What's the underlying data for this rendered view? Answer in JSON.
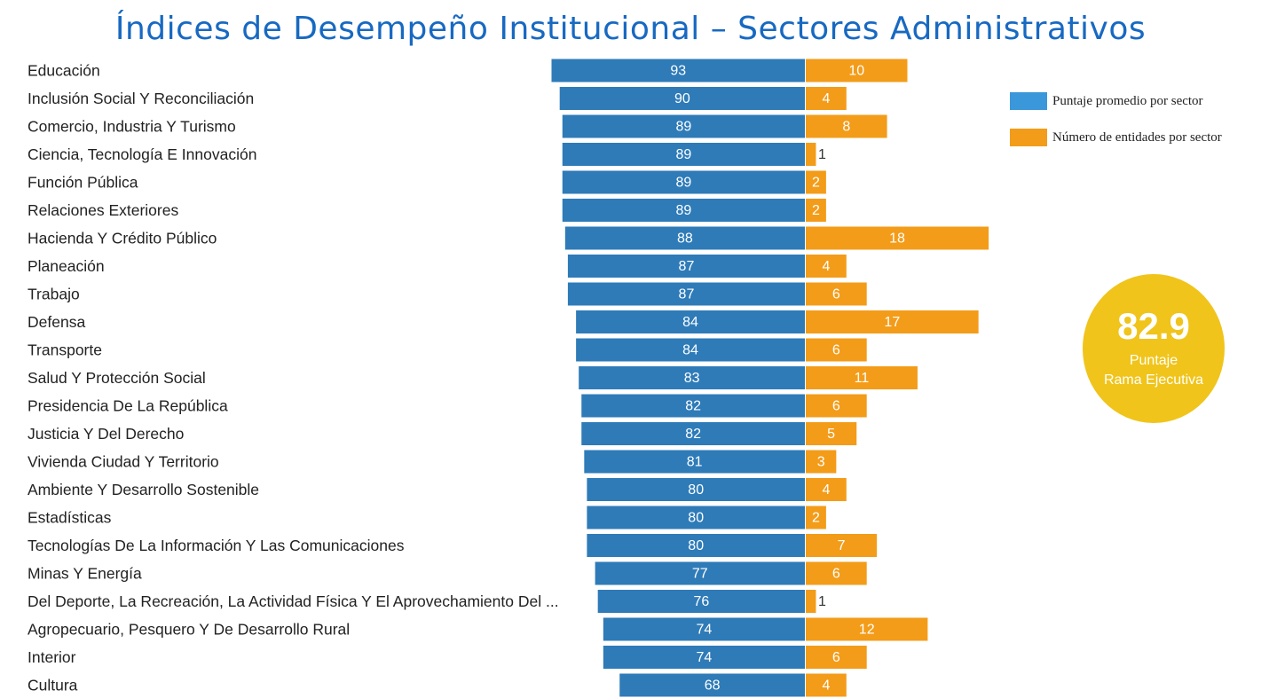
{
  "title": "Índices de Desempeño Institucional – Sectores Administrativos",
  "legend": {
    "items": [
      {
        "label": "Puntaje promedio por sector",
        "color": "#3a97da"
      },
      {
        "label": "Número de entidades por sector",
        "color": "#f39c19"
      }
    ]
  },
  "score": {
    "value": "82.9",
    "label_line1": "Puntaje",
    "label_line2": "Rama Ejecutiva",
    "color": "#f0c41a"
  },
  "colors": {
    "score_bar": "#2e7bb8",
    "count_bar": "#f39c19"
  },
  "chart_data": {
    "type": "bar",
    "orientation": "horizontal",
    "categories": [
      "Educación",
      "Inclusión Social Y Reconciliación",
      "Comercio, Industria Y Turismo",
      "Ciencia, Tecnología E Innovación",
      "Función Pública",
      "Relaciones Exteriores",
      "Hacienda Y Crédito Público",
      "Planeación",
      "Trabajo",
      "Defensa",
      "Transporte",
      "Salud Y Protección Social",
      "Presidencia De La República",
      "Justicia Y Del Derecho",
      "Vivienda Ciudad Y Territorio",
      "Ambiente Y Desarrollo Sostenible",
      "Estadísticas",
      "Tecnologías De La Información Y Las Comunicaciones",
      "Minas Y Energía",
      "Del Deporte, La Recreación, La Actividad Física Y El Aprovechamiento Del ...",
      "Agropecuario, Pesquero Y De Desarrollo Rural",
      "Interior",
      "Cultura"
    ],
    "series": [
      {
        "name": "Puntaje promedio por sector",
        "values": [
          93,
          90,
          89,
          89,
          89,
          89,
          88,
          87,
          87,
          84,
          84,
          83,
          82,
          82,
          81,
          80,
          80,
          80,
          77,
          76,
          74,
          74,
          68
        ]
      },
      {
        "name": "Número de entidades por sector",
        "values": [
          10,
          4,
          8,
          1,
          2,
          2,
          18,
          4,
          6,
          17,
          6,
          11,
          6,
          5,
          3,
          4,
          2,
          7,
          6,
          1,
          12,
          6,
          4
        ]
      }
    ],
    "legend_position": "top-right",
    "grid": false
  }
}
